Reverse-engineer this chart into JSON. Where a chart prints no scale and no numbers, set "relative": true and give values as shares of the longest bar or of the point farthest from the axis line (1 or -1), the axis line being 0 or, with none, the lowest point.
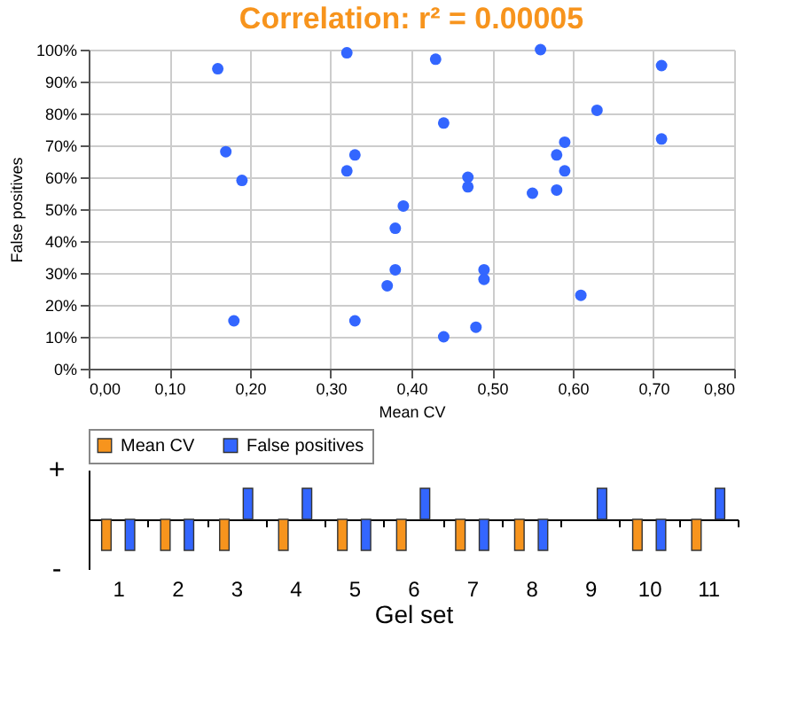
{
  "chart_data": [
    {
      "type": "scatter",
      "title": "Correlation: r² = 0.00005",
      "xlabel": "Mean CV",
      "ylabel": "False positives",
      "marker": "circle",
      "grid": true,
      "xlim": [
        0,
        0.8
      ],
      "xticks": [
        {
          "value": 0,
          "label": "0,00"
        },
        {
          "value": 0.1,
          "label": "0,10"
        },
        {
          "value": 0.2,
          "label": "0,20"
        },
        {
          "value": 0.3,
          "label": "0,30"
        },
        {
          "value": 0.4,
          "label": "0,40"
        },
        {
          "value": 0.5,
          "label": "0,50"
        },
        {
          "value": 0.6,
          "label": "0,60"
        },
        {
          "value": 0.7,
          "label": "0,70"
        },
        {
          "value": 0.8,
          "label": "0,80"
        }
      ],
      "ylim": [
        0,
        100
      ],
      "yticks": [
        {
          "value": 0,
          "label": "0%"
        },
        {
          "value": 10,
          "label": "10%"
        },
        {
          "value": 20,
          "label": "20%"
        },
        {
          "value": 30,
          "label": "30%"
        },
        {
          "value": 40,
          "label": "40%"
        },
        {
          "value": 50,
          "label": "50%"
        },
        {
          "value": 60,
          "label": "60%"
        },
        {
          "value": 70,
          "label": "70%"
        },
        {
          "value": 80,
          "label": "80%"
        },
        {
          "value": 90,
          "label": "90%"
        },
        {
          "value": 100,
          "label": "100%"
        }
      ],
      "x": [
        0.16,
        0.32,
        0.17,
        0.33,
        0.32,
        0.19,
        0.39,
        0.38,
        0.38,
        0.37,
        0.18,
        0.33,
        0.43,
        0.56,
        0.71,
        0.63,
        0.44,
        0.59,
        0.71,
        0.58,
        0.59,
        0.47,
        0.47,
        0.55,
        0.58,
        0.49,
        0.49,
        0.61,
        0.48,
        0.44
      ],
      "series": [
        {
          "color": "#3366ff",
          "values": [
            94,
            99,
            68,
            67,
            62,
            59,
            51,
            44,
            31,
            26,
            15,
            15,
            97,
            100,
            95,
            81,
            77,
            71,
            72,
            67,
            62,
            60,
            57,
            55,
            56,
            31,
            28,
            23,
            13,
            10
          ]
        }
      ]
    },
    {
      "type": "bar",
      "xlabel": "Gel set",
      "legend": "top",
      "categories": [
        "1",
        "2",
        "3",
        "4",
        "5",
        "6",
        "7",
        "8",
        "9",
        "10",
        "11"
      ],
      "relative": true,
      "annotations": [
        "+",
        "-"
      ],
      "series": [
        {
          "name": "Mean CV",
          "color": "#f7941d",
          "values": [
            -1,
            -1,
            -1,
            -1,
            -1,
            -1,
            -1,
            -1,
            null,
            -1,
            -1
          ]
        },
        {
          "name": "False positives",
          "color": "#3366ff",
          "values": [
            -1,
            -1,
            1,
            1,
            -1,
            1,
            -1,
            -1,
            1,
            -1,
            1
          ]
        }
      ]
    }
  ]
}
